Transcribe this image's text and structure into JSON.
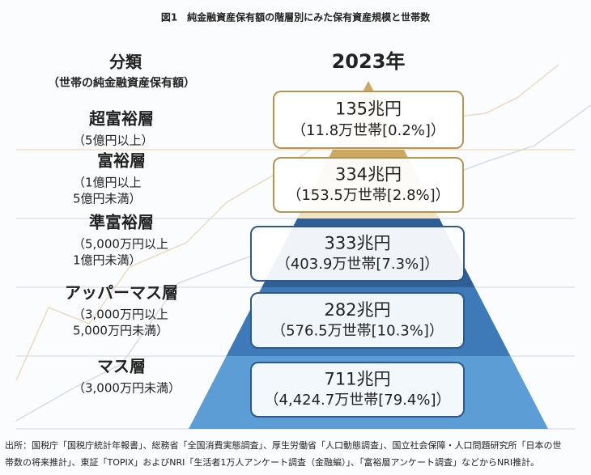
{
  "title": "図1　純金融資産保有額の階層別にみた保有資産規模と世帯数",
  "header": {
    "category": "分類",
    "category_sub": "（世帯の純金融資産保有額）",
    "year": "2023年"
  },
  "rows": [
    {
      "name": "超富裕層",
      "range": [
        "（5億円以上）"
      ],
      "assets": "135兆円",
      "households": "（11.8万世帯[0.2%]）"
    },
    {
      "name": "富裕層",
      "range": [
        "（1億円以上",
        "5億円未満）"
      ],
      "assets": "334兆円",
      "households": "（153.5万世帯[2.8%]）"
    },
    {
      "name": "準富裕層",
      "range": [
        "（5,000万円以上",
        "1億円未満）"
      ],
      "assets": "333兆円",
      "households": "（403.9万世帯[7.3%]）"
    },
    {
      "name": "アッパーマス層",
      "range": [
        "（3,000万円以上",
        "5,000万円未満）"
      ],
      "assets": "282兆円",
      "households": "（576.5万世帯[10.3%]）"
    },
    {
      "name": "マス層",
      "range": [
        "（3,000万円未満）"
      ],
      "assets": "711兆円",
      "households": "（4,424.7万世帯[79.4%]）"
    }
  ],
  "source": [
    "出所：国税庁「国税庁統計年報書」、総務省「全国消費実態調査」、厚生労働省「人口動態調査」、国立社会保障・人口問題研究所「日本の世",
    "帯数の将来推計」、東証「TOPIX」およびNRI「生活者1万人アンケート調査（金融編）」、「富裕層アンケート調査」などからNRI推計。"
  ]
}
